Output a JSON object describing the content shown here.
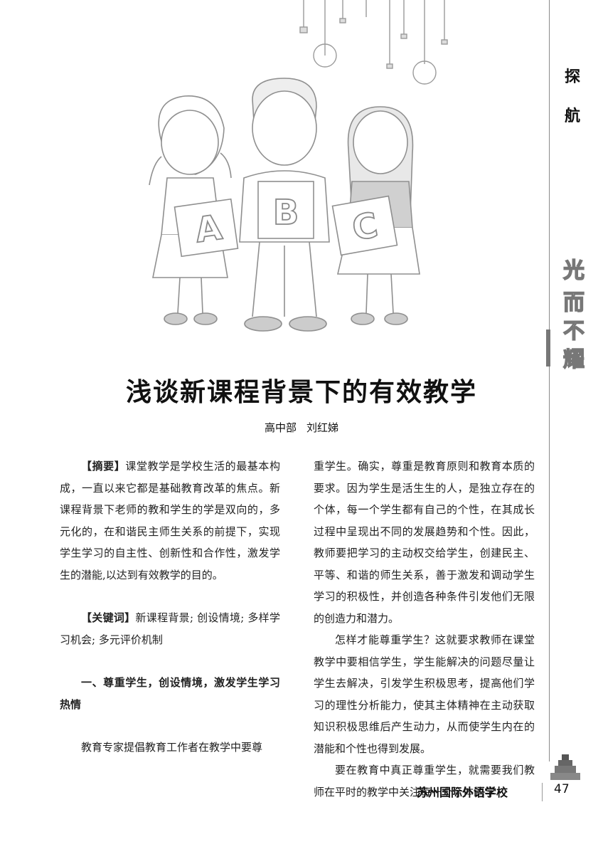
{
  "sidebar": {
    "label_1": "探",
    "label_2": "航",
    "motto": [
      "光",
      "而",
      "不",
      "耀"
    ]
  },
  "illustration": {
    "letters": [
      "A",
      "B",
      "C"
    ]
  },
  "article": {
    "title": "浅谈新课程背景下的有效教学",
    "dept": "高中部",
    "author": "刘红娣",
    "abstract_label": "【摘要】",
    "abstract_text": "课堂教学是学校生活的最基本构成，一直以来它都是基础教育改革的焦点。新课程背景下老师的教和学生的学是双向的，多元化的，在和谐民主师生关系的前提下，实现学生学习的自主性、创新性和合作性，激发学生的潜能,以达到有效教学的目的。",
    "keywords_label": "【关键词】",
    "keywords_text": "新课程背景; 创设情境; 多样学习机会; 多元评价机制",
    "section_1_heading": "一、尊重学生，创设情境，激发学生学习热情",
    "left_para_start": "教育专家提倡教育工作者在教学中要尊",
    "right_para_1": "重学生。确实，尊重是教育原则和教育本质的要求。因为学生是活生生的人，是独立存在的个体，每一个学生都有自己的个性，在其成长过程中呈现出不同的发展趋势和个性。因此，教师要把学习的主动权交给学生，创建民主、平等、和谐的师生关系，善于激发和调动学生学习的积极性，并创造各种条件引发他们无限的创造力和潜力。",
    "right_para_2": "怎样才能尊重学生？这就要求教师在课堂教学中要相信学生，学生能解决的问题尽量让学生去解决，引发学生积极思考，提高他们学习的理性分析能力，使其主体精神在主动获取知识积极思维后产生动力，从而使学生内在的潜能和个性也得到发展。",
    "right_para_3": "要在教育中真正尊重学生，就需要我们教师在平时的教学中关注每一个个体的学"
  },
  "footer": {
    "school": "苏州国际外语学校",
    "page": "47"
  }
}
